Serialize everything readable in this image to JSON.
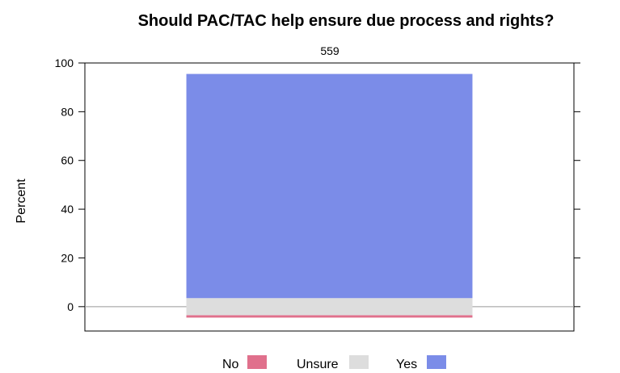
{
  "chart_data": {
    "type": "bar",
    "title": "Should PAC/TAC help ensure due process and rights?",
    "panel_label": "559",
    "ylabel": "Percent",
    "ylim": [
      -10,
      100
    ],
    "yticks": [
      0,
      20,
      40,
      60,
      80,
      100
    ],
    "grid": false,
    "legend_position": "bottom",
    "categories": [
      "559"
    ],
    "diverging": true,
    "series": [
      {
        "name": "No",
        "values": [
          1
        ],
        "direction": "negative",
        "color": "#E0708C"
      },
      {
        "name": "Unsure",
        "values": [
          7
        ],
        "direction": "split",
        "color": "#DDDDDD"
      },
      {
        "name": "Yes",
        "values": [
          92
        ],
        "direction": "positive",
        "color": "#7B8CE8"
      }
    ]
  }
}
